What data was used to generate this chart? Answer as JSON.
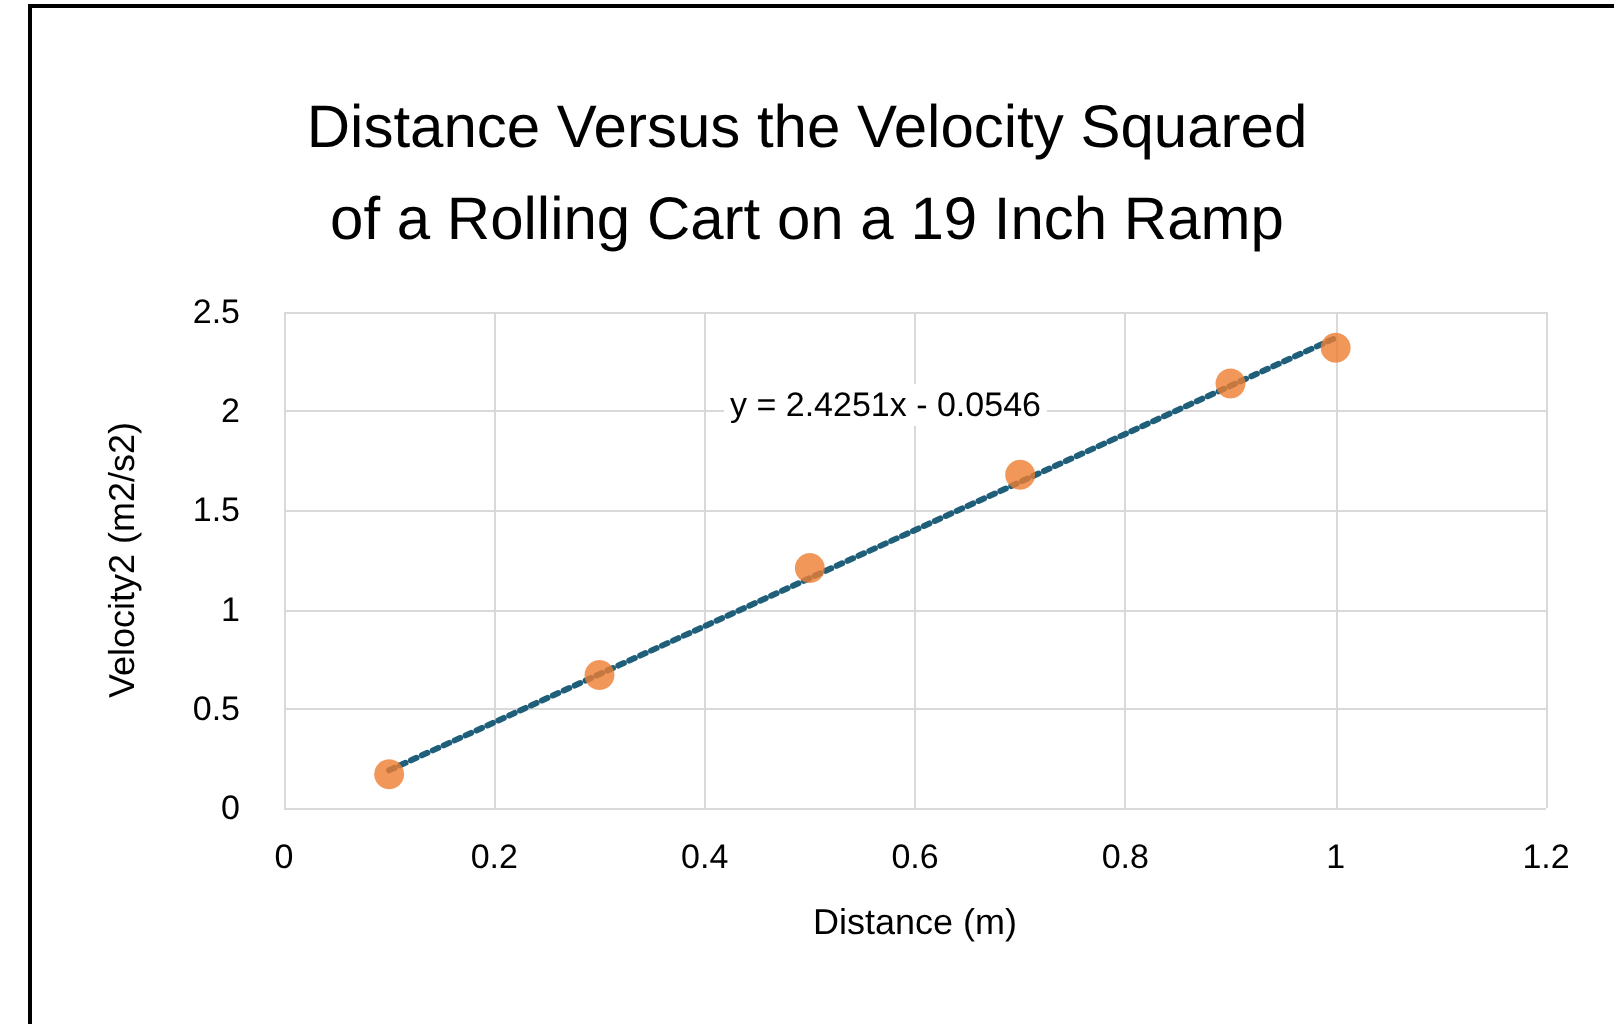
{
  "chart_data": {
    "type": "scatter",
    "title": "Distance Versus the Velocity Squared\nof a Rolling Cart on a 19 Inch Ramp",
    "xlabel": "Distance (m)",
    "ylabel": "Velocity2 (m2/s2)",
    "x": [
      0.1,
      0.3,
      0.5,
      0.7,
      0.9,
      1.0
    ],
    "series": [
      {
        "color": "#ed7d31",
        "values": [
          0.17,
          0.67,
          1.21,
          1.68,
          2.14,
          2.32
        ]
      },
      {
        "type": "line",
        "color": "#1f5f7a",
        "x": [
          0.1,
          1.0
        ],
        "values": [
          0.19,
          2.37
        ],
        "marker": "none",
        "line_style": "dotted"
      }
    ],
    "annotations": [
      "y = 2.4251x - 0.0546"
    ],
    "xlim": [
      0,
      1.2
    ],
    "xticks": [
      0,
      0.2,
      0.4,
      0.6,
      0.8,
      1,
      1.2
    ],
    "ylim": [
      0,
      2.5
    ],
    "yticks": [
      0,
      0.5,
      1,
      1.5,
      2,
      2.5
    ],
    "grid": true,
    "marker": "circle"
  }
}
